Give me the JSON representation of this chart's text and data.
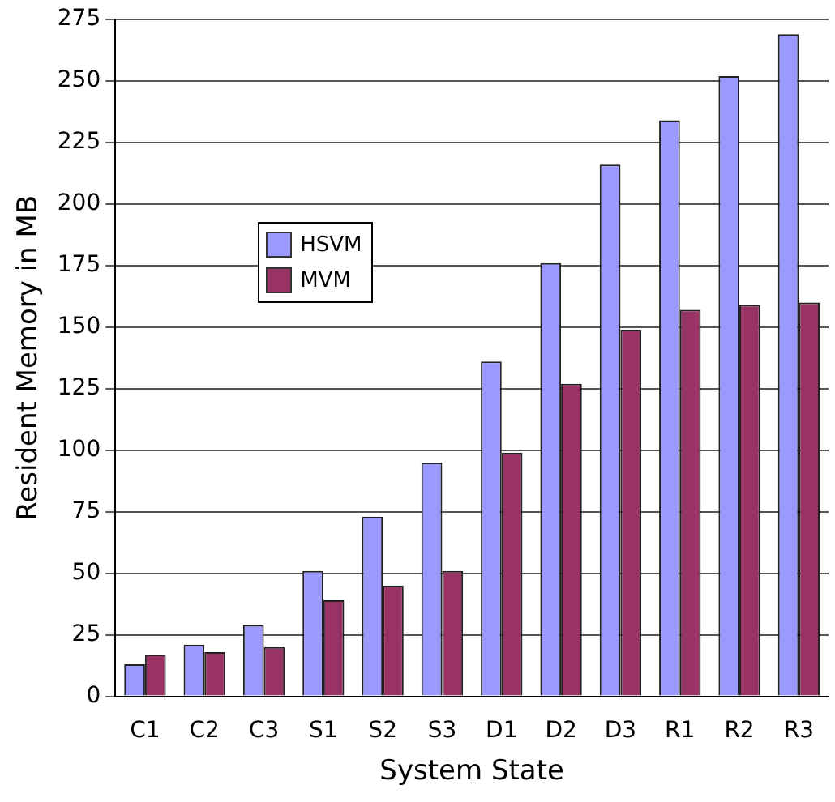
{
  "chart_data": {
    "type": "bar",
    "xlabel": "System State",
    "ylabel": "Resident Memory in MB",
    "categories": [
      "C1",
      "C2",
      "C3",
      "S1",
      "S2",
      "S3",
      "D1",
      "D2",
      "D3",
      "R1",
      "R2",
      "R3"
    ],
    "series": [
      {
        "name": "HSVM",
        "color": "#9999ff",
        "values": [
          13,
          21,
          29,
          51,
          73,
          95,
          136,
          176,
          216,
          234,
          252,
          269
        ]
      },
      {
        "name": "MVM",
        "color": "#993366",
        "values": [
          17,
          18,
          20,
          39,
          45,
          51,
          99,
          127,
          149,
          157,
          159,
          160
        ]
      }
    ],
    "ylim": [
      0,
      275
    ],
    "yticks": [
      0,
      25,
      50,
      75,
      100,
      125,
      150,
      175,
      200,
      225,
      250,
      275
    ],
    "grid": "y",
    "legend": "top left"
  }
}
